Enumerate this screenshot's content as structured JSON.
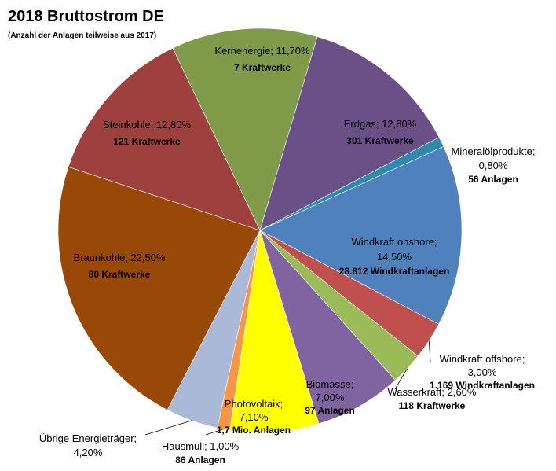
{
  "chart_data": {
    "type": "pie",
    "title": "2018 Bruttostrom DE",
    "subtitle": "(Anzahl der Anlagen teilweise aus 2017)",
    "slices": [
      {
        "label": "Kernenergie; 11,70%",
        "detail": "7 Kraftwerke",
        "value": 11.7,
        "color": "#7f9a48"
      },
      {
        "label": "Erdgas; 12,80%",
        "detail": "301 Kraftwerke",
        "value": 12.8,
        "color": "#6a5087"
      },
      {
        "label": "Mineralölprodukte; 0,80%",
        "detail": "56 Anlagen",
        "value": 0.8,
        "color": "#2e8aad"
      },
      {
        "label": "Windkraft onshore; 14,50%",
        "detail": "28.812 Windkraftanlagen",
        "value": 14.5,
        "color": "#4f81bd"
      },
      {
        "label": "Windkraft offshore; 3,00%",
        "detail": "1.169 Windkraftanlagen",
        "value": 3.0,
        "color": "#c0504d"
      },
      {
        "label": "Wasserkraft; 2,60%",
        "detail": "118 Kraftwerke",
        "value": 2.6,
        "color": "#9bbb59"
      },
      {
        "label": "Biomasse; 7,00%",
        "detail": "97 Anlagen",
        "value": 7.0,
        "color": "#8064a2"
      },
      {
        "label": "Photovoltaik; 7,10%",
        "detail": "1,7 Mio. Anlagen",
        "value": 7.1,
        "color": "#ffff00"
      },
      {
        "label": "Hausmüll; 1,00%",
        "detail": "86 Anlagen",
        "value": 1.0,
        "color": "#f79646"
      },
      {
        "label": "Übrige Energieträger; 4,20%",
        "detail": "",
        "value": 4.2,
        "color": "#aab9d8"
      },
      {
        "label": "Braunkohle; 22,50%",
        "detail": "80 Kraftwerke",
        "value": 22.5,
        "color": "#984807"
      },
      {
        "label": "Steinkohle; 12,80%",
        "detail": "121 Kraftwerke",
        "value": 12.8,
        "color": "#9e413e"
      }
    ]
  }
}
